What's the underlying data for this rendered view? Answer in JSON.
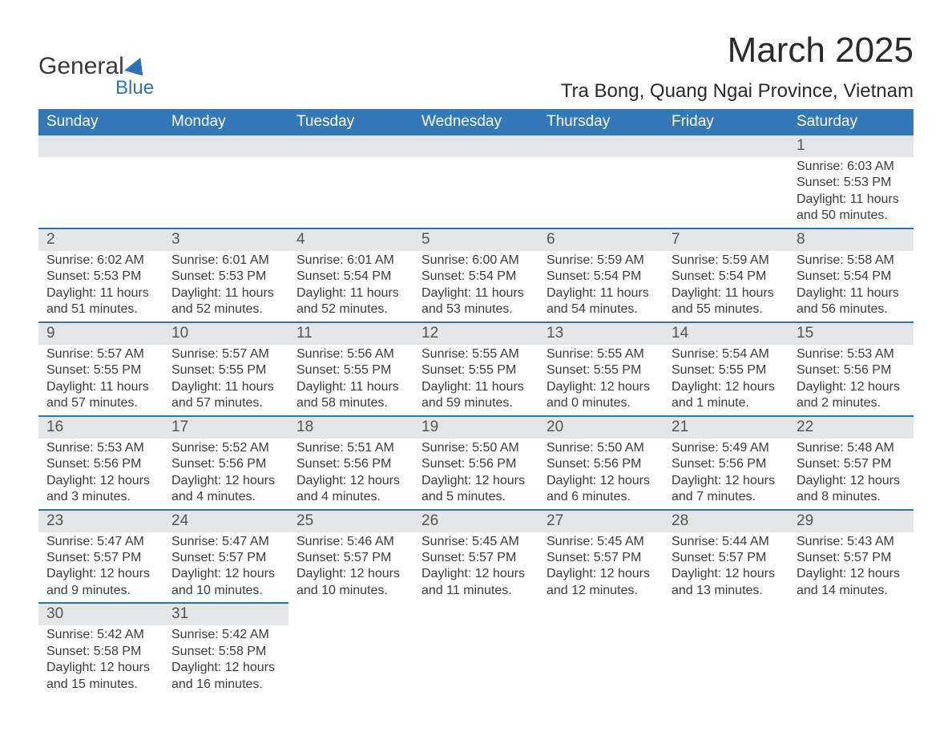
{
  "logo": {
    "top": "General",
    "bottom": "Blue"
  },
  "header": {
    "month_year": "March 2025",
    "location": "Tra Bong, Quang Ngai Province, Vietnam"
  },
  "colors": {
    "header_bg": "#3379b7",
    "header_text": "#ffffff",
    "daynum_bg": "#e4e5e6",
    "row_border": "#2e72b4",
    "brand_blue": "#2e72b4",
    "text": "#333333"
  },
  "weekday_labels": [
    "Sunday",
    "Monday",
    "Tuesday",
    "Wednesday",
    "Thursday",
    "Friday",
    "Saturday"
  ],
  "labels": {
    "sunrise": "Sunrise:",
    "sunset": "Sunset:",
    "daylight": "Daylight:"
  },
  "grid": [
    [
      null,
      null,
      null,
      null,
      null,
      null,
      {
        "n": "1",
        "sr": "6:03 AM",
        "ss": "5:53 PM",
        "dl": "11 hours and 50 minutes."
      }
    ],
    [
      {
        "n": "2",
        "sr": "6:02 AM",
        "ss": "5:53 PM",
        "dl": "11 hours and 51 minutes."
      },
      {
        "n": "3",
        "sr": "6:01 AM",
        "ss": "5:53 PM",
        "dl": "11 hours and 52 minutes."
      },
      {
        "n": "4",
        "sr": "6:01 AM",
        "ss": "5:54 PM",
        "dl": "11 hours and 52 minutes."
      },
      {
        "n": "5",
        "sr": "6:00 AM",
        "ss": "5:54 PM",
        "dl": "11 hours and 53 minutes."
      },
      {
        "n": "6",
        "sr": "5:59 AM",
        "ss": "5:54 PM",
        "dl": "11 hours and 54 minutes."
      },
      {
        "n": "7",
        "sr": "5:59 AM",
        "ss": "5:54 PM",
        "dl": "11 hours and 55 minutes."
      },
      {
        "n": "8",
        "sr": "5:58 AM",
        "ss": "5:54 PM",
        "dl": "11 hours and 56 minutes."
      }
    ],
    [
      {
        "n": "9",
        "sr": "5:57 AM",
        "ss": "5:55 PM",
        "dl": "11 hours and 57 minutes."
      },
      {
        "n": "10",
        "sr": "5:57 AM",
        "ss": "5:55 PM",
        "dl": "11 hours and 57 minutes."
      },
      {
        "n": "11",
        "sr": "5:56 AM",
        "ss": "5:55 PM",
        "dl": "11 hours and 58 minutes."
      },
      {
        "n": "12",
        "sr": "5:55 AM",
        "ss": "5:55 PM",
        "dl": "11 hours and 59 minutes."
      },
      {
        "n": "13",
        "sr": "5:55 AM",
        "ss": "5:55 PM",
        "dl": "12 hours and 0 minutes."
      },
      {
        "n": "14",
        "sr": "5:54 AM",
        "ss": "5:55 PM",
        "dl": "12 hours and 1 minute."
      },
      {
        "n": "15",
        "sr": "5:53 AM",
        "ss": "5:56 PM",
        "dl": "12 hours and 2 minutes."
      }
    ],
    [
      {
        "n": "16",
        "sr": "5:53 AM",
        "ss": "5:56 PM",
        "dl": "12 hours and 3 minutes."
      },
      {
        "n": "17",
        "sr": "5:52 AM",
        "ss": "5:56 PM",
        "dl": "12 hours and 4 minutes."
      },
      {
        "n": "18",
        "sr": "5:51 AM",
        "ss": "5:56 PM",
        "dl": "12 hours and 4 minutes."
      },
      {
        "n": "19",
        "sr": "5:50 AM",
        "ss": "5:56 PM",
        "dl": "12 hours and 5 minutes."
      },
      {
        "n": "20",
        "sr": "5:50 AM",
        "ss": "5:56 PM",
        "dl": "12 hours and 6 minutes."
      },
      {
        "n": "21",
        "sr": "5:49 AM",
        "ss": "5:56 PM",
        "dl": "12 hours and 7 minutes."
      },
      {
        "n": "22",
        "sr": "5:48 AM",
        "ss": "5:57 PM",
        "dl": "12 hours and 8 minutes."
      }
    ],
    [
      {
        "n": "23",
        "sr": "5:47 AM",
        "ss": "5:57 PM",
        "dl": "12 hours and 9 minutes."
      },
      {
        "n": "24",
        "sr": "5:47 AM",
        "ss": "5:57 PM",
        "dl": "12 hours and 10 minutes."
      },
      {
        "n": "25",
        "sr": "5:46 AM",
        "ss": "5:57 PM",
        "dl": "12 hours and 10 minutes."
      },
      {
        "n": "26",
        "sr": "5:45 AM",
        "ss": "5:57 PM",
        "dl": "12 hours and 11 minutes."
      },
      {
        "n": "27",
        "sr": "5:45 AM",
        "ss": "5:57 PM",
        "dl": "12 hours and 12 minutes."
      },
      {
        "n": "28",
        "sr": "5:44 AM",
        "ss": "5:57 PM",
        "dl": "12 hours and 13 minutes."
      },
      {
        "n": "29",
        "sr": "5:43 AM",
        "ss": "5:57 PM",
        "dl": "12 hours and 14 minutes."
      }
    ],
    [
      {
        "n": "30",
        "sr": "5:42 AM",
        "ss": "5:58 PM",
        "dl": "12 hours and 15 minutes."
      },
      {
        "n": "31",
        "sr": "5:42 AM",
        "ss": "5:58 PM",
        "dl": "12 hours and 16 minutes."
      },
      null,
      null,
      null,
      null,
      null
    ]
  ]
}
